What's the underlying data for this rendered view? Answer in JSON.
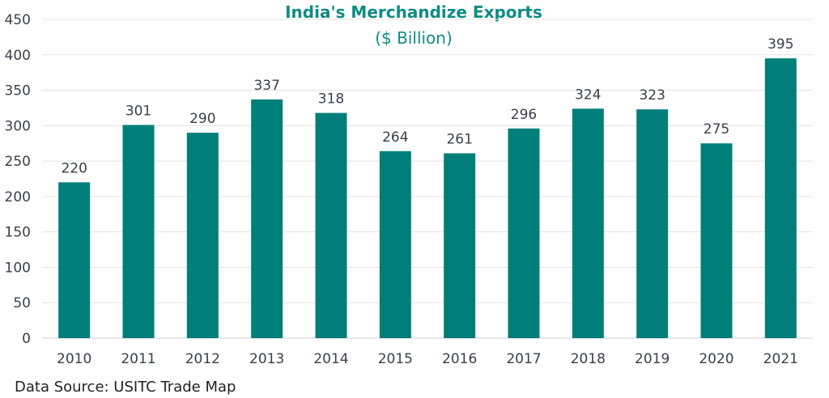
{
  "chart_data": {
    "type": "bar",
    "title": "India's Merchandize Exports",
    "subtitle": "($ Billion)",
    "categories": [
      "2010",
      "2011",
      "2012",
      "2013",
      "2014",
      "2015",
      "2016",
      "2017",
      "2018",
      "2019",
      "2020",
      "2021"
    ],
    "values": [
      220,
      301,
      290,
      337,
      318,
      264,
      261,
      296,
      324,
      323,
      275,
      395
    ],
    "xlabel": "",
    "ylabel": "",
    "ylim": [
      0,
      450
    ],
    "yticks": [
      0,
      50,
      100,
      150,
      200,
      250,
      300,
      350,
      400,
      450
    ],
    "grid": true,
    "data_labels": true,
    "bar_color": "#007F7A",
    "title_color": "#0E8C84",
    "grid_color": "#E3E3E3"
  },
  "footer": {
    "source": "Data Source: USITC Trade Map"
  }
}
